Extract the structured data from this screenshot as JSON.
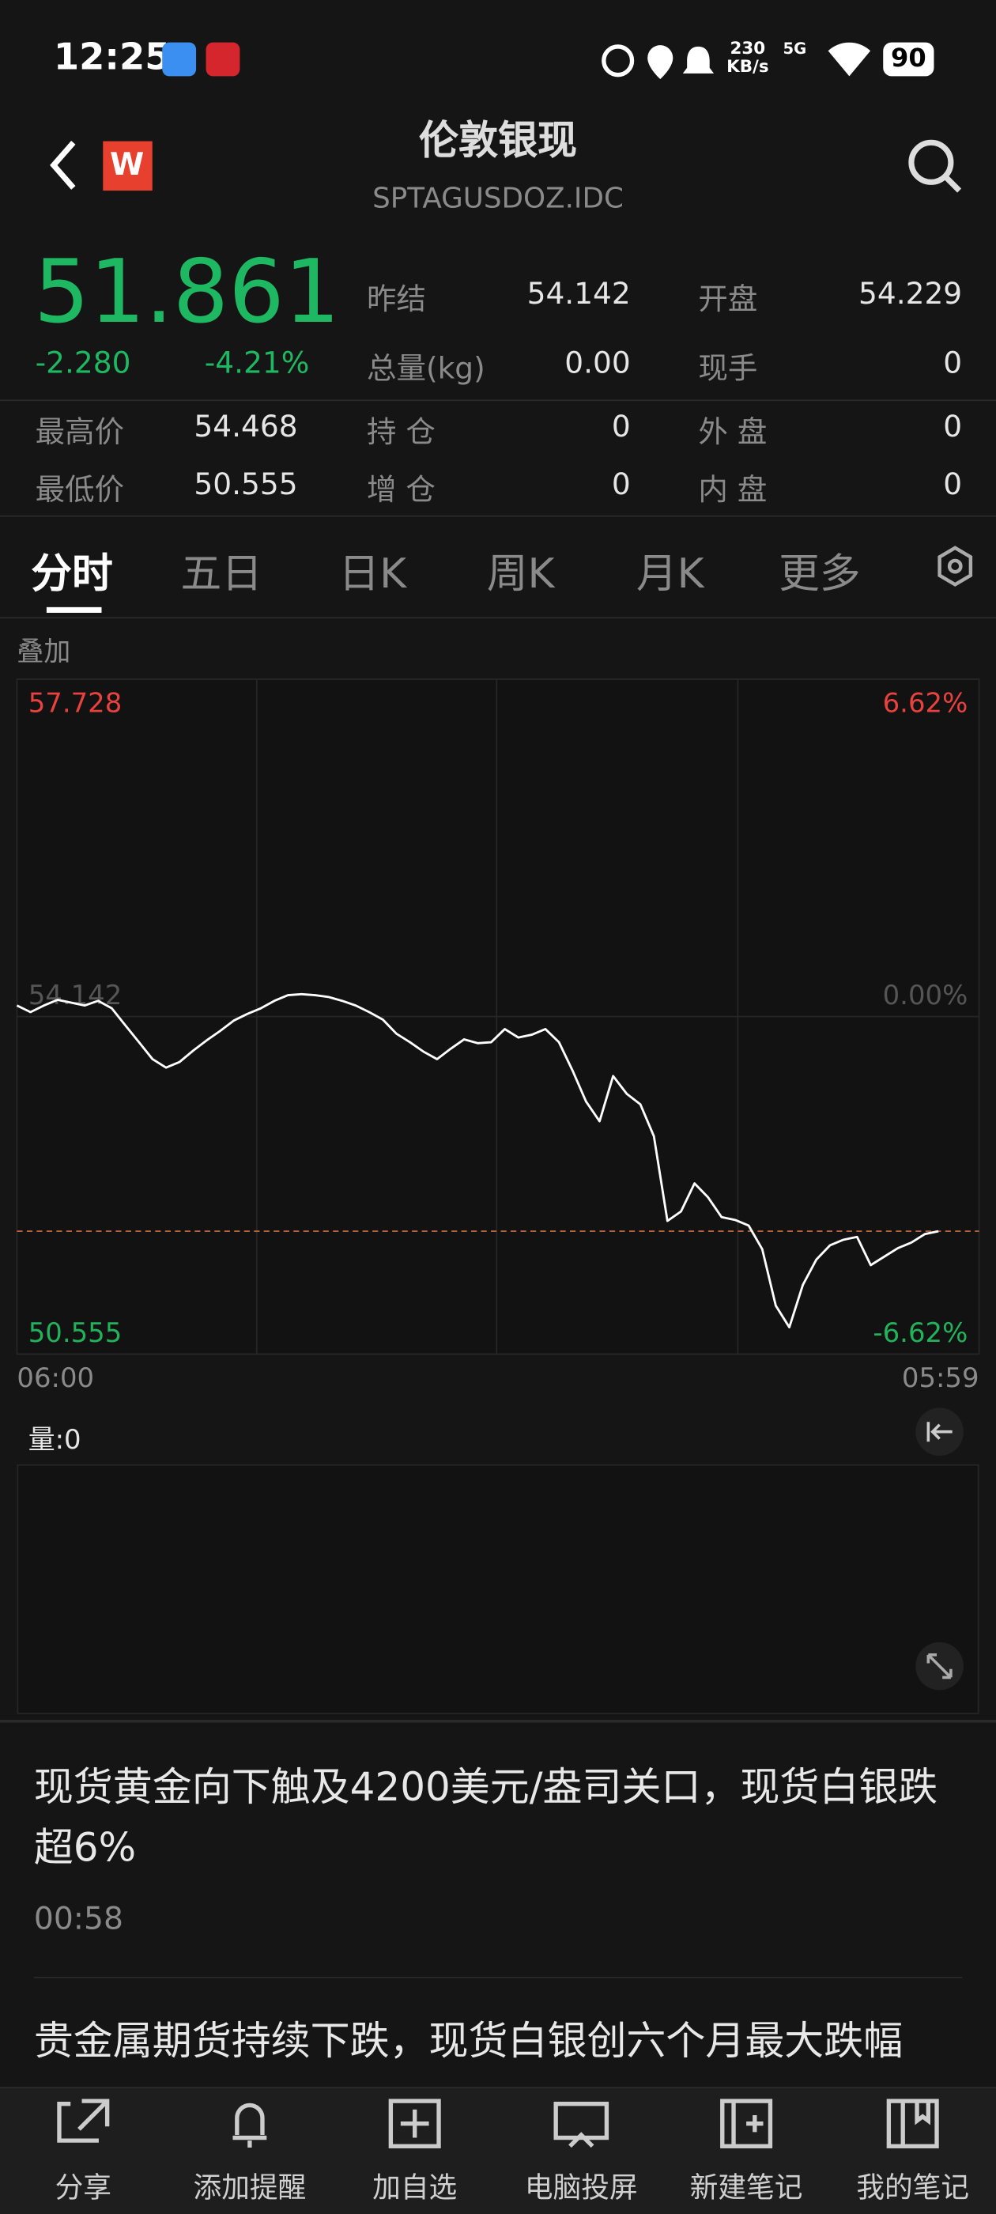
{
  "status_bar": {
    "time": "12:25",
    "speed": "230",
    "speed_unit": "KB/s",
    "network": "5G",
    "battery": "90"
  },
  "header": {
    "title": "伦敦银现",
    "code": "SPTAGUSDOZ.IDC"
  },
  "quote": {
    "price": 51.861,
    "change": "-2.280",
    "change_pct": "-4.21%"
  },
  "stats": [
    {
      "label": "昨结",
      "value": "54.142"
    },
    {
      "label": "开盘",
      "value": "54.229"
    },
    {
      "label": "总量(kg)",
      "value": "0.00"
    },
    {
      "label": "现手",
      "value": "0"
    },
    {
      "label": "最高价",
      "value": "54.468"
    },
    {
      "label": "持 仓",
      "value": "0"
    },
    {
      "label": "外 盘",
      "value": "0"
    },
    {
      "label": "最低价",
      "value": "50.555"
    },
    {
      "label": "增 仓",
      "value": "0"
    },
    {
      "label": "内 盘",
      "value": "0"
    }
  ],
  "tabs": [
    "分时",
    "五日",
    "日K",
    "周K",
    "月K",
    "更多"
  ],
  "overlay_label": "叠加",
  "chart_data": {
    "type": "line",
    "categories": [
      "06:00",
      null,
      null,
      null,
      null,
      null,
      null,
      null,
      null,
      null,
      null,
      null,
      null,
      null,
      null,
      null,
      null,
      null,
      null,
      null,
      null,
      null,
      null,
      null,
      null,
      null,
      null,
      null,
      null,
      null,
      null,
      null,
      null,
      null,
      null,
      null,
      null,
      null,
      null,
      null,
      null,
      null,
      null,
      null,
      null,
      null,
      null,
      null,
      null,
      null,
      null,
      null,
      null,
      null,
      null,
      null,
      null,
      null,
      null,
      null,
      null,
      null,
      null,
      null,
      null,
      null,
      null,
      null,
      null,
      null,
      null,
      "05:59"
    ],
    "series": [
      {
        "color": "#ffffff",
        "values": [
          54.26,
          54.19,
          54.26,
          54.32,
          54.29,
          54.26,
          54.31,
          54.23,
          54.05,
          53.87,
          53.69,
          53.6,
          53.66,
          53.78,
          53.89,
          53.99,
          54.1,
          54.17,
          54.23,
          54.31,
          54.37,
          54.38,
          54.37,
          54.35,
          54.31,
          54.26,
          54.19,
          54.11,
          53.96,
          53.87,
          53.77,
          53.69,
          53.8,
          53.9,
          53.86,
          53.87,
          54.01,
          53.92,
          53.95,
          54.01,
          53.87,
          53.57,
          53.24,
          53.03,
          53.51,
          53.32,
          53.21,
          52.87,
          51.97,
          52.07,
          52.37,
          52.22,
          52.01,
          51.98,
          51.92,
          51.67,
          51.07,
          50.84,
          51.29,
          51.56,
          51.71,
          51.77,
          51.8,
          51.5,
          51.59,
          51.68,
          51.74,
          51.83,
          51.86,
          null,
          null,
          null
        ]
      }
    ],
    "ylim": [
      50.555,
      57.728
    ],
    "yticks": [
      57.728,
      54.142,
      50.555
    ],
    "y2lim": [
      -6.62,
      6.62
    ],
    "y2ticks": [
      {
        "value": 6.62,
        "label": "6.62%"
      },
      {
        "value": 0,
        "label": "0.00%"
      },
      {
        "value": -6.62,
        "label": "-6.62%"
      }
    ]
  },
  "volume_label": "量:0",
  "news": [
    {
      "title": "现货黄金向下触及4200美元/盎司关口，现货白银跌超6%",
      "time": "00:58"
    },
    {
      "title": "贵金属期货持续下跌，现货白银创六个月最大跌幅"
    }
  ],
  "bottom_nav": [
    "分享",
    "添加提醒",
    "加自选",
    "电脑投屏",
    "新建笔记",
    "我的笔记"
  ]
}
